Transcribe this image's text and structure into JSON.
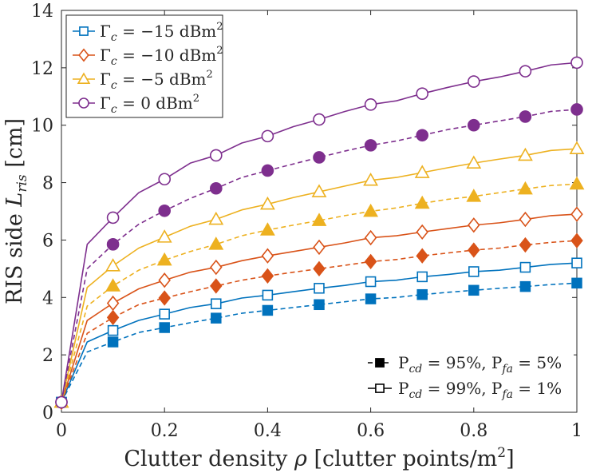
{
  "chart_data": {
    "type": "line",
    "xlabel": "Clutter density ρ [clutter points/m²]",
    "ylabel": "RIS side L_ris [cm]",
    "xlim": [
      0,
      1
    ],
    "ylim": [
      0,
      14
    ],
    "xticks": [
      0,
      0.2,
      0.4,
      0.6,
      0.8,
      1
    ],
    "xtick_labels": [
      "0",
      "0.2",
      "0.4",
      "0.6",
      "0.8",
      "1"
    ],
    "yticks": [
      0,
      2,
      4,
      6,
      8,
      10,
      12,
      14
    ],
    "ytick_labels": [
      "0",
      "2",
      "4",
      "6",
      "8",
      "10",
      "12",
      "14"
    ],
    "grid": false,
    "x": [
      0,
      0.05,
      0.1,
      0.15,
      0.2,
      0.25,
      0.3,
      0.35,
      0.4,
      0.45,
      0.5,
      0.55,
      0.6,
      0.65,
      0.7,
      0.75,
      0.8,
      0.85,
      0.9,
      0.95,
      1
    ],
    "marker_x": [
      0,
      0.1,
      0.2,
      0.3,
      0.4,
      0.5,
      0.6,
      0.7,
      0.8,
      0.9,
      1
    ],
    "series": [
      {
        "name": "Γc = −15 dBm², Pcd=95%, Pfa=5%",
        "group": "−15",
        "marker": "square",
        "filled": true,
        "dashed": true,
        "color": "#0072BD",
        "values": [
          0.35,
          2.1,
          2.45,
          2.78,
          2.95,
          3.12,
          3.28,
          3.45,
          3.55,
          3.65,
          3.75,
          3.85,
          3.95,
          4.0,
          4.1,
          4.18,
          4.25,
          4.32,
          4.38,
          4.45,
          4.5
        ]
      },
      {
        "name": "Γc = −15 dBm², Pcd=99%, Pfa=1%",
        "group": "−15",
        "marker": "square",
        "filled": false,
        "dashed": false,
        "color": "#0072BD",
        "values": [
          0.35,
          2.45,
          2.85,
          3.2,
          3.42,
          3.65,
          3.78,
          3.98,
          4.08,
          4.2,
          4.32,
          4.42,
          4.55,
          4.6,
          4.72,
          4.8,
          4.9,
          4.95,
          5.05,
          5.15,
          5.2
        ]
      },
      {
        "name": "Γc = −10 dBm², Pcd=95%, Pfa=5%",
        "group": "−10",
        "marker": "diamond",
        "filled": true,
        "dashed": true,
        "color": "#D95319",
        "values": [
          0.35,
          2.75,
          3.3,
          3.75,
          3.98,
          4.2,
          4.4,
          4.6,
          4.75,
          4.88,
          5.0,
          5.12,
          5.25,
          5.32,
          5.45,
          5.55,
          5.65,
          5.72,
          5.83,
          5.92,
          5.98
        ]
      },
      {
        "name": "Γc = −10 dBm², Pcd=99%, Pfa=1%",
        "group": "−10",
        "marker": "diamond",
        "filled": false,
        "dashed": false,
        "color": "#D95319",
        "values": [
          0.35,
          3.2,
          3.8,
          4.3,
          4.6,
          4.88,
          5.05,
          5.28,
          5.45,
          5.6,
          5.75,
          5.9,
          6.08,
          6.15,
          6.28,
          6.4,
          6.52,
          6.6,
          6.72,
          6.85,
          6.9
        ]
      },
      {
        "name": "Γc = −5 dBm², Pcd=95%, Pfa=5%",
        "group": "−5",
        "marker": "triangle",
        "filled": true,
        "dashed": true,
        "color": "#EDB120",
        "values": [
          0.35,
          3.7,
          4.4,
          4.95,
          5.3,
          5.6,
          5.85,
          6.15,
          6.35,
          6.52,
          6.68,
          6.85,
          7.0,
          7.12,
          7.28,
          7.42,
          7.52,
          7.65,
          7.78,
          7.9,
          7.95
        ]
      },
      {
        "name": "Γc = −5 dBm², Pcd=99%, Pfa=1%",
        "group": "−5",
        "marker": "triangle",
        "filled": false,
        "dashed": false,
        "color": "#EDB120",
        "values": [
          0.35,
          4.35,
          5.1,
          5.72,
          6.1,
          6.48,
          6.72,
          7.05,
          7.25,
          7.48,
          7.68,
          7.88,
          8.08,
          8.18,
          8.35,
          8.52,
          8.68,
          8.82,
          8.95,
          9.12,
          9.18
        ]
      },
      {
        "name": "Γc = 0 dBm², Pcd=95%, Pfa=5%",
        "group": "0",
        "marker": "circle",
        "filled": true,
        "dashed": true,
        "color": "#7E2F8E",
        "values": [
          0.35,
          5.0,
          5.85,
          6.55,
          7.02,
          7.45,
          7.8,
          8.18,
          8.42,
          8.65,
          8.88,
          9.1,
          9.3,
          9.45,
          9.65,
          9.85,
          10.0,
          10.15,
          10.3,
          10.48,
          10.55
        ]
      },
      {
        "name": "Γc = 0 dBm², Pcd=99%, Pfa=1%",
        "group": "0",
        "marker": "circle",
        "filled": false,
        "dashed": false,
        "color": "#7E2F8E",
        "values": [
          0.35,
          5.85,
          6.78,
          7.65,
          8.12,
          8.68,
          8.95,
          9.38,
          9.62,
          9.95,
          10.2,
          10.48,
          10.72,
          10.85,
          11.1,
          11.32,
          11.52,
          11.68,
          11.88,
          12.1,
          12.18
        ]
      }
    ],
    "legend_groups": [
      {
        "prefix": "Γ",
        "sub": "c",
        "value": " = −15 dBm",
        "sup": "2",
        "marker": "square",
        "color": "#0072BD"
      },
      {
        "prefix": "Γ",
        "sub": "c",
        "value": " = −10 dBm",
        "sup": "2",
        "marker": "diamond",
        "color": "#D95319"
      },
      {
        "prefix": "Γ",
        "sub": "c",
        "value": " = −5 dBm",
        "sup": "2",
        "marker": "triangle",
        "color": "#EDB120"
      },
      {
        "prefix": "Γ",
        "sub": "c",
        "value": " = 0 dBm",
        "sup": "2",
        "marker": "circle",
        "color": "#7E2F8E"
      }
    ],
    "legend_position": "top-left",
    "style_legend": [
      {
        "p1": "P",
        "s1": "cd",
        "t1": " = 95%, P",
        "s2": "fa",
        "t2": " = 5%",
        "filled": true,
        "dashed": true
      },
      {
        "p1": "P",
        "s1": "cd",
        "t1": " = 99%, P",
        "s2": "fa",
        "t2": " = 1%",
        "filled": false,
        "dashed": false
      }
    ],
    "style_legend_position": "bottom-right",
    "axis_label_parts": {
      "x_pre": "Clutter density ",
      "x_var": "ρ",
      "x_post": " [clutter points/m",
      "x_sup": "2",
      "x_end": "]",
      "y_pre": "RIS side ",
      "y_var": "L",
      "y_sub": "ris",
      "y_post": " [cm]"
    }
  }
}
